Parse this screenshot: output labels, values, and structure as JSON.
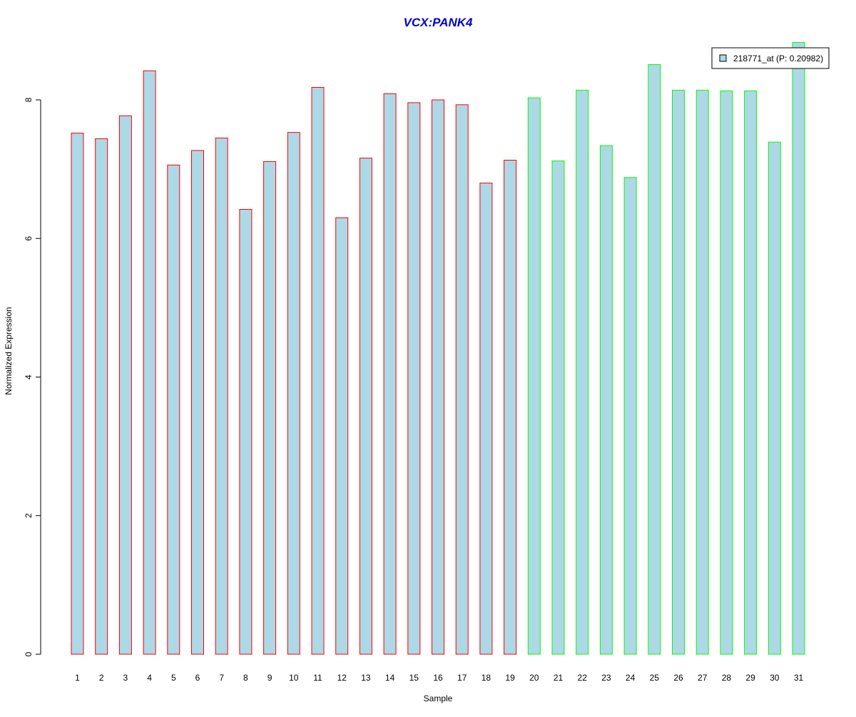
{
  "chart_data": {
    "type": "bar",
    "title": "VCX:PANK4",
    "xlabel": "Sample",
    "ylabel": "Normalized Expression",
    "ylim": [
      0,
      8.85
    ],
    "y_ticks": [
      0,
      2,
      4,
      6,
      8
    ],
    "grid": false,
    "legend_position": "top-right",
    "categories": [
      "1",
      "2",
      "3",
      "4",
      "5",
      "6",
      "7",
      "8",
      "9",
      "10",
      "11",
      "12",
      "13",
      "14",
      "15",
      "16",
      "17",
      "18",
      "19",
      "20",
      "21",
      "22",
      "23",
      "24",
      "25",
      "26",
      "27",
      "28",
      "29",
      "30",
      "31"
    ],
    "series": [
      {
        "name": "218771_at (P: 0.20982)",
        "values": [
          7.52,
          7.44,
          7.77,
          8.42,
          7.06,
          7.27,
          7.45,
          6.42,
          7.11,
          7.53,
          8.18,
          6.3,
          7.16,
          8.09,
          7.96,
          8.0,
          7.93,
          6.8,
          7.13,
          8.03,
          7.12,
          8.14,
          7.34,
          6.88,
          8.51,
          8.14,
          8.14,
          8.13,
          8.13,
          7.39,
          8.83
        ],
        "fill_color": "#add8e6",
        "border_colors": [
          "#ff0000",
          "#ff0000",
          "#ff0000",
          "#ff0000",
          "#ff0000",
          "#ff0000",
          "#ff0000",
          "#ff0000",
          "#ff0000",
          "#ff0000",
          "#ff0000",
          "#ff0000",
          "#ff0000",
          "#ff0000",
          "#ff0000",
          "#ff0000",
          "#ff0000",
          "#ff0000",
          "#ff0000",
          "#00ff00",
          "#00ff00",
          "#00ff00",
          "#00ff00",
          "#00ff00",
          "#00ff00",
          "#00ff00",
          "#00ff00",
          "#00ff00",
          "#00ff00",
          "#00ff00",
          "#00ff00"
        ]
      }
    ],
    "title_color": "#0000cd",
    "legend": {
      "label": "218771_at (P: 0.20982)",
      "swatch_color": "#add8e6"
    }
  }
}
